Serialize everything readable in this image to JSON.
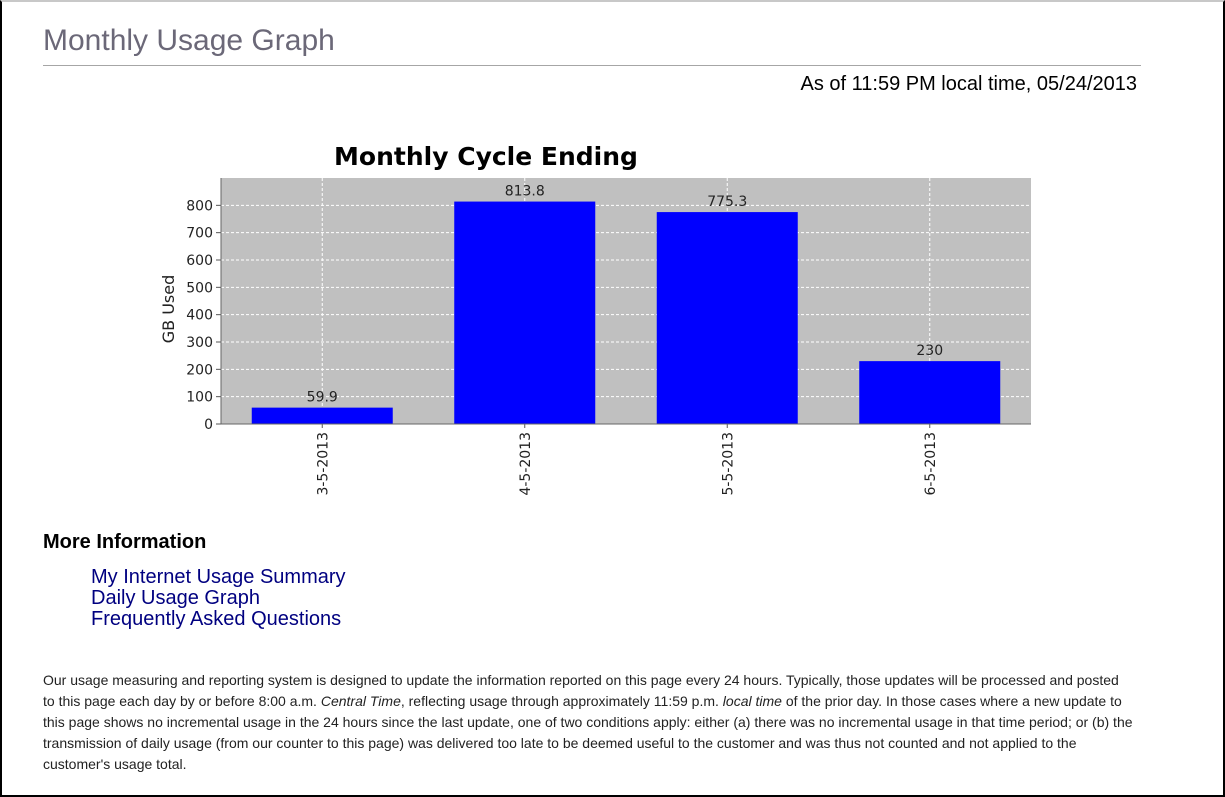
{
  "page": {
    "title": "Monthly Usage Graph",
    "as_of": "As of 11:59 PM local time, 05/24/2013"
  },
  "chart_data": {
    "type": "bar",
    "title": "Monthly Cycle Ending",
    "xlabel": "",
    "ylabel": "GB Used",
    "categories": [
      "3-5-2013",
      "4-5-2013",
      "5-5-2013",
      "6-5-2013"
    ],
    "values": [
      59.9,
      813.8,
      775.3,
      230
    ],
    "value_labels": [
      "59.9",
      "813.8",
      "775.3",
      "230"
    ],
    "ylim": [
      0,
      900
    ],
    "yticks": [
      0,
      100,
      200,
      300,
      400,
      500,
      600,
      700,
      800
    ],
    "grid": true,
    "bar_color": "#0000ff",
    "plot_background": "#c0c0c0",
    "grid_color": "#ffffff"
  },
  "more_info": {
    "heading": "More Information",
    "links": [
      "My Internet Usage Summary",
      "Daily Usage Graph",
      "Frequently Asked Questions"
    ],
    "link_color": "#000080"
  },
  "disclaimer": {
    "part1": "Our usage measuring and reporting system is designed to update the information reported on this page every 24 hours. Typically, those updates will be processed and posted to this page each day by or before 8:00 a.m. ",
    "central_time": "Central Time",
    "part2": ", reflecting usage through approximately 11:59 p.m. ",
    "local_time": "local time",
    "part3": " of the prior day. In those cases where a new update to this page shows no incremental usage in the 24 hours since the last update, one of two conditions apply: either (a) there was no incremental usage in that time period; or (b) the transmission of daily usage (from our counter to this page) was delivered too late to be deemed useful to the customer and was thus not counted and not applied to the customer's usage total."
  }
}
